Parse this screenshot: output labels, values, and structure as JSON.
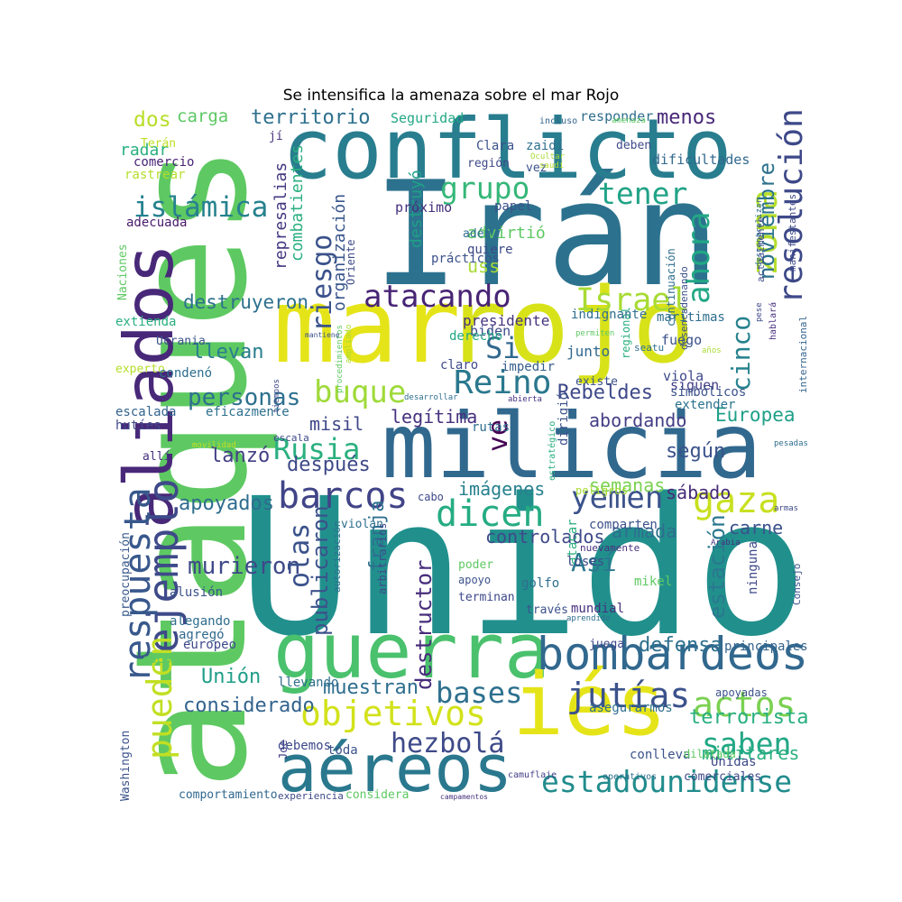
{
  "title": "Se intensifica la amenaza sobre el mar Rojo",
  "words": [
    {
      "text": "Unido",
      "color": "#21908d",
      "rot": 0
    },
    {
      "text": "ataques",
      "color": "#5ec962",
      "rot": -90
    },
    {
      "text": "Irán",
      "color": "#2c728e",
      "rot": 0
    },
    {
      "text": "conflicto",
      "color": "#287d8e",
      "rot": 0
    },
    {
      "text": "mar",
      "color": "#e5e419",
      "rot": 0
    },
    {
      "text": "rojo",
      "color": "#d8e219",
      "rot": 0
    },
    {
      "text": "milicia",
      "color": "#31688e",
      "rot": 0
    },
    {
      "text": "aliados",
      "color": "#482878",
      "rot": -90
    },
    {
      "text": "guerra",
      "color": "#4ac16d",
      "rot": 0
    },
    {
      "text": "iés",
      "color": "#e5e419",
      "rot": 0
    },
    {
      "text": "aéreos",
      "color": "#2a788e",
      "rot": 0
    },
    {
      "text": "bombardeos",
      "color": "#31688e",
      "rot": 0
    },
    {
      "text": "ejemplo",
      "color": "#3e4a89",
      "rot": -90
    },
    {
      "text": "respuesta",
      "color": "#38588c",
      "rot": -90
    },
    {
      "text": "pueden",
      "color": "#c2df23",
      "rot": -90
    },
    {
      "text": "barcos",
      "color": "#414487",
      "rot": 0
    },
    {
      "text": "dicen",
      "color": "#25ac82",
      "rot": 0
    },
    {
      "text": "yemen",
      "color": "#3b528b",
      "rot": 0
    },
    {
      "text": "gaza",
      "color": "#c8e020",
      "rot": 0
    },
    {
      "text": "Rusia",
      "color": "#2ab07f",
      "rot": 0
    },
    {
      "text": "zona",
      "color": "#b5de2b",
      "rot": -90
    },
    {
      "text": "atacando",
      "color": "#482475",
      "rot": 0
    },
    {
      "text": "Israel",
      "color": "#a8db34",
      "rot": 0
    },
    {
      "text": "ahora",
      "color": "#22a785",
      "rot": -90
    },
    {
      "text": "resolución",
      "color": "#3e4989",
      "rot": -90
    },
    {
      "text": "tener",
      "color": "#20a386",
      "rot": 0
    },
    {
      "text": "grupo",
      "color": "#35b779",
      "rot": 0
    },
    {
      "text": "riesgo",
      "color": "#3b528b",
      "rot": -90
    },
    {
      "text": "islámica",
      "color": "#26828e",
      "rot": 0
    },
    {
      "text": "buque",
      "color": "#9fda3a",
      "rot": 0
    },
    {
      "text": "Reino",
      "color": "#2a788e",
      "rot": 0
    },
    {
      "text": "Si",
      "color": "#31688e",
      "rot": 0
    },
    {
      "text": "objetivos",
      "color": "#d2e21b",
      "rot": 0
    },
    {
      "text": "jutías",
      "color": "#3b528b",
      "rot": 0
    },
    {
      "text": "actos",
      "color": "#7ad151",
      "rot": 0
    },
    {
      "text": "saben",
      "color": "#22a785",
      "rot": 0
    },
    {
      "text": "estadounidense",
      "color": "#228c8d",
      "rot": 0
    },
    {
      "text": "hezbolá",
      "color": "#3e4a89",
      "rot": 0
    },
    {
      "text": "bases",
      "color": "#2d708e",
      "rot": 0
    },
    {
      "text": "murieron",
      "color": "#3e4989",
      "rot": 0
    },
    {
      "text": "Así",
      "color": "#2a788e",
      "rot": 0
    },
    {
      "text": "olas",
      "color": "#3b528b",
      "rot": -90
    },
    {
      "text": "ve",
      "color": "#440154",
      "rot": -90
    },
    {
      "text": "cinco",
      "color": "#26828e",
      "rot": -90
    },
    {
      "text": "territorio",
      "color": "#2d708e",
      "rot": 0
    },
    {
      "text": "noviembre",
      "color": "#2c728e",
      "rot": -90
    },
    {
      "text": "Rebeldes",
      "color": "#3e4989",
      "rot": 0
    },
    {
      "text": "personas",
      "color": "#2d708e",
      "rot": 0
    },
    {
      "text": "menos",
      "color": "#482878",
      "rot": 0
    },
    {
      "text": "destruyeron",
      "color": "#2d708e",
      "rot": 0
    },
    {
      "text": "después",
      "color": "#3e4a89",
      "rot": 0
    },
    {
      "text": "imágenes",
      "color": "#27808e",
      "rot": 0
    },
    {
      "text": "estación",
      "color": "#2a788e",
      "rot": -90
    },
    {
      "text": "franja",
      "color": "#2d708e",
      "rot": -90
    },
    {
      "text": "Unión",
      "color": "#1f9e89",
      "rot": 0
    },
    {
      "text": "muestran",
      "color": "#2e6e8e",
      "rot": 0
    },
    {
      "text": "considerado",
      "color": "#33638d",
      "rot": 0
    },
    {
      "text": "Europea",
      "color": "#1fa088",
      "rot": 0
    },
    {
      "text": "legítima",
      "color": "#46307e",
      "rot": 0
    },
    {
      "text": "abordando",
      "color": "#433e85",
      "rot": 0
    },
    {
      "text": "semanas",
      "color": "#7ad151",
      "rot": 0
    },
    {
      "text": "carne",
      "color": "#3b528b",
      "rot": 0
    },
    {
      "text": "destructor",
      "color": "#472d7b",
      "rot": -90
    },
    {
      "text": "publicaron",
      "color": "#3b528b",
      "rot": -90
    },
    {
      "text": "controlados",
      "color": "#3e4a89",
      "rot": 0
    },
    {
      "text": "armada",
      "color": "#2e6e8e",
      "rot": 0
    },
    {
      "text": "terrorista",
      "color": "#29af7f",
      "rot": 0
    },
    {
      "text": "militares",
      "color": "#2ab07f",
      "rot": 0
    },
    {
      "text": "defensa",
      "color": "#2d708e",
      "rot": 0
    },
    {
      "text": "apoyados",
      "color": "#2f6c8e",
      "rot": 0
    },
    {
      "text": "lanzó",
      "color": "#423f85",
      "rot": 0
    },
    {
      "text": "según",
      "color": "#3b528b",
      "rot": 0
    },
    {
      "text": "sábado",
      "color": "#472c7a",
      "rot": 0
    },
    {
      "text": "llevan",
      "color": "#287d8e",
      "rot": 0
    },
    {
      "text": "misil",
      "color": "#3f4788",
      "rot": 0
    },
    {
      "text": "carga",
      "color": "#5cc863",
      "rot": 0
    },
    {
      "text": "dos",
      "color": "#b8de29",
      "rot": 0
    },
    {
      "text": "combatientes",
      "color": "#29af7f",
      "rot": -90
    },
    {
      "text": "organización",
      "color": "#39568c",
      "rot": -90
    },
    {
      "text": "Hamas",
      "color": "#2c728e",
      "rot": -90
    },
    {
      "text": "uss",
      "color": "#a8db34",
      "rot": 0
    },
    {
      "text": "destruyó",
      "color": "#1fa088",
      "rot": -90
    },
    {
      "text": "represalias",
      "color": "#453781",
      "rot": -90
    },
    {
      "text": "advirtió",
      "color": "#5ec962",
      "rot": 0
    },
    {
      "text": "presidente",
      "color": "#46337f",
      "rot": 0
    },
    {
      "text": "biden",
      "color": "#3e4a89",
      "rot": 0
    },
    {
      "text": "derecho",
      "color": "#22a785",
      "rot": 0
    },
    {
      "text": "impedir",
      "color": "#355f8d",
      "rot": 0
    },
    {
      "text": "junto",
      "color": "#31688e",
      "rot": 0
    },
    {
      "text": "fuego",
      "color": "#3b528b",
      "rot": 0
    },
    {
      "text": "viola",
      "color": "#3e4989",
      "rot": 0
    },
    {
      "text": "siguen",
      "color": "#433e85",
      "rot": 0
    },
    {
      "text": "extender",
      "color": "#2c728e",
      "rot": 0
    },
    {
      "text": "marítimas",
      "color": "#2e6e8e",
      "rot": 0
    },
    {
      "text": "simbólicos",
      "color": "#3b528b",
      "rot": 0
    },
    {
      "text": "radar",
      "color": "#29af7f",
      "rot": 0
    },
    {
      "text": "comercio",
      "color": "#482475",
      "rot": 0
    },
    {
      "text": "rastrear",
      "color": "#b5de2b",
      "rot": 0
    },
    {
      "text": "adecuada",
      "color": "#481a6c",
      "rot": 0
    },
    {
      "text": "Terán",
      "color": "#bddf26",
      "rot": 0
    },
    {
      "text": "Naciones",
      "color": "#5ec962",
      "rot": -90
    },
    {
      "text": "Ucrania",
      "color": "#3b528b",
      "rot": 0
    },
    {
      "text": "experto",
      "color": "#b5de2b",
      "rot": 0
    },
    {
      "text": "condenó",
      "color": "#2e6e8e",
      "rot": 0
    },
    {
      "text": "extienda",
      "color": "#2ab07f",
      "rot": 0
    },
    {
      "text": "escalada",
      "color": "#33638d",
      "rot": 0
    },
    {
      "text": "eficazmente",
      "color": "#2d708e",
      "rot": 0
    },
    {
      "text": "hutíes",
      "color": "#3e4989",
      "rot": 0
    },
    {
      "text": "allí",
      "color": "#46307e",
      "rot": 0
    },
    {
      "text": "preocupación",
      "color": "#38598c",
      "rot": -90
    },
    {
      "text": "alusión",
      "color": "#3b528b",
      "rot": 0
    },
    {
      "text": "alegando",
      "color": "#2e6e8e",
      "rot": 0
    },
    {
      "text": "agregó",
      "color": "#31688e",
      "rot": 0
    },
    {
      "text": "europeo",
      "color": "#3e4a89",
      "rot": 0
    },
    {
      "text": "escuchemos",
      "color": "#5ec962",
      "rot": 0
    },
    {
      "text": "Washington",
      "color": "#3b528b",
      "rot": -90
    },
    {
      "text": "Joe",
      "color": "#433e85",
      "rot": -90
    },
    {
      "text": "llevando",
      "color": "#2e6e8e",
      "rot": 0
    },
    {
      "text": "debemos",
      "color": "#3e4989",
      "rot": 0
    },
    {
      "text": "toda",
      "color": "#3b528b",
      "rot": 0
    },
    {
      "text": "comportamiento",
      "color": "#31688e",
      "rot": 0
    },
    {
      "text": "experiencia",
      "color": "#3e4a89",
      "rot": 0
    },
    {
      "text": "considera",
      "color": "#5ec962",
      "rot": 0
    },
    {
      "text": "campamentos",
      "color": "#46307e",
      "rot": 0
    },
    {
      "text": "camuflaje",
      "color": "#433e85",
      "rot": 0
    },
    {
      "text": "operativos",
      "color": "#2e6e8e",
      "rot": 0
    },
    {
      "text": "comerciales",
      "color": "#3e4989",
      "rot": 0
    },
    {
      "text": "conlleva",
      "color": "#3b528b",
      "rot": 0
    },
    {
      "text": "dilatada",
      "color": "#5ec962",
      "rot": 0
    },
    {
      "text": "Unidas",
      "color": "#3e4a89",
      "rot": 0
    },
    {
      "text": "asegurarmos",
      "color": "#2e6e8e",
      "rot": 0
    },
    {
      "text": "apoyadas",
      "color": "#3b528b",
      "rot": 0
    },
    {
      "text": "principales",
      "color": "#33638d",
      "rot": 0
    },
    {
      "text": "ninguna",
      "color": "#3e4989",
      "rot": -90
    },
    {
      "text": "Consejo",
      "color": "#3b528b",
      "rot": -90
    },
    {
      "text": "Arabia",
      "color": "#46307e",
      "rot": 0
    },
    {
      "text": "armas",
      "color": "#3e4a89",
      "rot": 0
    },
    {
      "text": "pesadas",
      "color": "#2e6e8e",
      "rot": 0
    },
    {
      "text": "Seguridad",
      "color": "#22a785",
      "rot": 0
    },
    {
      "text": "responder",
      "color": "#2e6e8e",
      "rot": 0
    },
    {
      "text": "jí",
      "color": "#46307e",
      "rot": 0
    },
    {
      "text": "Clara",
      "color": "#3b528b",
      "rot": 0
    },
    {
      "text": "región",
      "color": "#3e4989",
      "rot": 0
    },
    {
      "text": "zaidí",
      "color": "#2e6e8e",
      "rot": 0
    },
    {
      "text": "vez",
      "color": "#3b528b",
      "rot": 0
    },
    {
      "text": "deben",
      "color": "#3e4a89",
      "rot": 0
    },
    {
      "text": "incluso",
      "color": "#33638d",
      "rot": 0
    },
    {
      "text": "amenaza",
      "color": "#5ec962",
      "rot": 0
    },
    {
      "text": "Ocultar",
      "color": "#a8db34",
      "rot": 0
    },
    {
      "text": "saudí",
      "color": "#b5de2b",
      "rot": 0
    },
    {
      "text": "descentralizar",
      "color": "#2e6e8e",
      "rot": -90
    },
    {
      "text": "manifestantes",
      "color": "#3e4989",
      "rot": -90
    },
    {
      "text": "dificultades",
      "color": "#31688e",
      "rot": 0
    },
    {
      "text": "papel",
      "color": "#3b528b",
      "rot": 0
    },
    {
      "text": "próximo",
      "color": "#46307e",
      "rot": 0
    },
    {
      "text": "Oriente",
      "color": "#3e4a89",
      "rot": -90
    },
    {
      "text": "amplíado",
      "color": "#a8db34",
      "rot": -90
    },
    {
      "text": "procedimientos",
      "color": "#5ec962",
      "rot": -90
    },
    {
      "text": "adén",
      "color": "#2e6e8e",
      "rot": 0
    },
    {
      "text": "prácticos",
      "color": "#3b528b",
      "rot": 0
    },
    {
      "text": "quiere",
      "color": "#3e4989",
      "rot": 0
    },
    {
      "text": "regional",
      "color": "#29af7f",
      "rot": -90
    },
    {
      "text": "continuación",
      "color": "#2e6e8e",
      "rot": -90
    },
    {
      "text": "desencadenando",
      "color": "#3b528b",
      "rot": -90
    },
    {
      "text": "actualmente",
      "color": "#3e4a89",
      "rot": -90
    },
    {
      "text": "internacional",
      "color": "#33638d",
      "rot": -90
    },
    {
      "text": "hablará",
      "color": "#46307e",
      "rot": -90
    },
    {
      "text": "pese",
      "color": "#3e4989",
      "rot": -90
    },
    {
      "text": "indignante",
      "color": "#2e6e8e",
      "rot": 0
    },
    {
      "text": "mantiene",
      "color": "#3b528b",
      "rot": 0
    },
    {
      "text": "tiempos",
      "color": "#3e4a89",
      "rot": -90
    },
    {
      "text": "permiten",
      "color": "#5ec962",
      "rot": 0
    },
    {
      "text": "seatu",
      "color": "#2e6e8e",
      "rot": 0
    },
    {
      "text": "años",
      "color": "#a8db34",
      "rot": 0
    },
    {
      "text": "claro",
      "color": "#3e4989",
      "rot": 0
    },
    {
      "text": "existe",
      "color": "#3b528b",
      "rot": 0
    },
    {
      "text": "desarrollar",
      "color": "#2e6e8e",
      "rot": 0
    },
    {
      "text": "abierta",
      "color": "#46307e",
      "rot": 0
    },
    {
      "text": "movilidad",
      "color": "#c2df23",
      "rot": 0
    },
    {
      "text": "escala",
      "color": "#3e4a89",
      "rot": 0
    },
    {
      "text": "rutas",
      "color": "#2e6e8e",
      "rot": 0
    },
    {
      "text": "dirigió",
      "color": "#3b528b",
      "rot": -90
    },
    {
      "text": "estratégico",
      "color": "#29af7f",
      "rot": -90
    },
    {
      "text": "cabo",
      "color": "#3e4989",
      "rot": 0
    },
    {
      "text": "peligros",
      "color": "#a8db34",
      "rot": 0
    },
    {
      "text": "violan",
      "color": "#2e6e8e",
      "rot": 0
    },
    {
      "text": "comparten",
      "color": "#3b528b",
      "rot": 0
    },
    {
      "text": "nuevamente",
      "color": "#46307e",
      "rot": 0
    },
    {
      "text": "arbitrarios",
      "color": "#3e4a89",
      "rot": -90
    },
    {
      "text": "autorización",
      "color": "#2e6e8e",
      "rot": -90
    },
    {
      "text": "terminan",
      "color": "#3e4989",
      "rot": 0
    },
    {
      "text": "poder",
      "color": "#5ec962",
      "rot": 0
    },
    {
      "text": "apoyo",
      "color": "#3b528b",
      "rot": 0
    },
    {
      "text": "golfo",
      "color": "#2e6e8e",
      "rot": 0
    },
    {
      "text": "atacar",
      "color": "#29af7f",
      "rot": -90
    },
    {
      "text": "loses",
      "color": "#3e4a89",
      "rot": 0
    },
    {
      "text": "mundial",
      "color": "#46307e",
      "rot": 0
    },
    {
      "text": "mikel",
      "color": "#5ec962",
      "rot": 0
    },
    {
      "text": "través",
      "color": "#3b528b",
      "rot": 0
    },
    {
      "text": "aprendido",
      "color": "#2e6e8e",
      "rot": 0
    },
    {
      "text": "juega",
      "color": "#3e4989",
      "rot": 0
    }
  ]
}
